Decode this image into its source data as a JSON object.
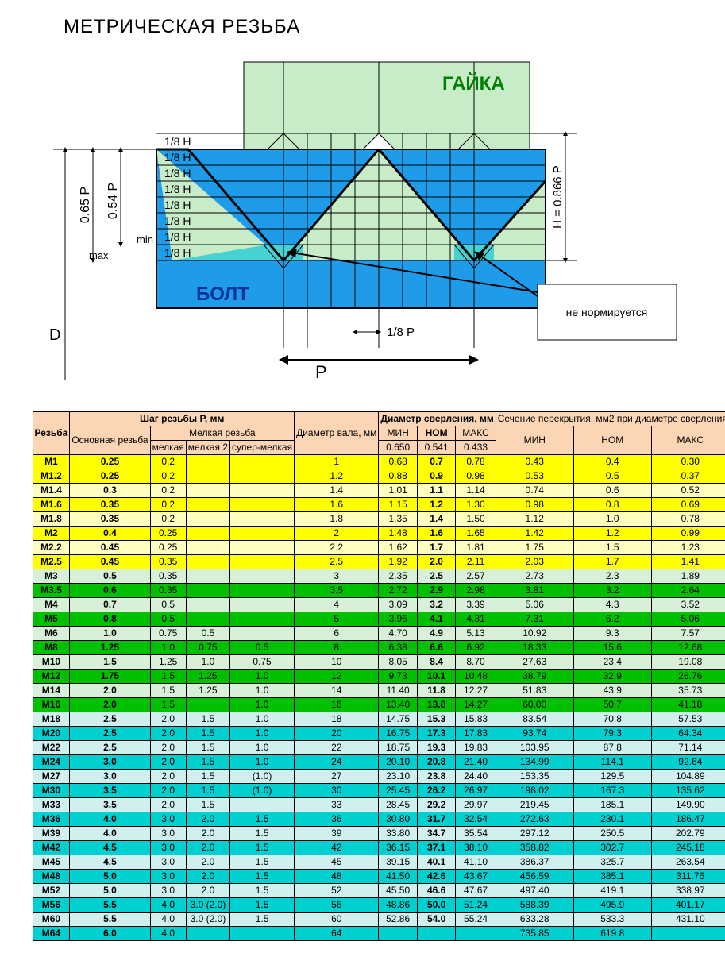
{
  "title": "МЕТРИЧЕСКАЯ РЕЗЬБА",
  "diagram": {
    "nut_label": "ГАЙКА",
    "bolt_label": "БОЛТ",
    "note_label": "не нормируется",
    "d_label": "D",
    "max_label": "max",
    "min_label": "min",
    "p065_label": "0.65 P",
    "p054_label": "0.54 P",
    "h_label": "H = 0.866 P",
    "p_label": "P",
    "p18_label": "1/8 P",
    "h18_label": "1/8 H",
    "colors": {
      "bolt_fill": "#1e9be9",
      "nut_fill": "#c8ecc8",
      "root_fill": "#46d2d2",
      "line": "#000000"
    }
  },
  "table": {
    "headers": {
      "thread": "Резьба",
      "pitch_group": "Шаг резьбы P, мм",
      "main_pitch": "Основная резьба",
      "fine_group": "Мелкая резьба",
      "fine1": "мелкая",
      "fine2": "мелкая 2",
      "fine3": "супер-мелкая",
      "shaft": "Диаметр вала, мм",
      "drill_group": "Диаметр сверления, мм",
      "overlap_group": "Сечение перекрытия, мм2 при диаметре сверления",
      "min": "МИН",
      "nom": "НОМ",
      "max": "МАКС",
      "v1": "0.650",
      "v2": "0.541",
      "v3": "0.433"
    },
    "colors": {
      "y0": "#ffffc0",
      "y1": "#ffff00",
      "g0": "#d8f0d8",
      "g1": "#00c000",
      "c0": "#d0f0f0",
      "c1": "#00d0d0"
    },
    "rows": [
      {
        "hl": 1,
        "c": "y",
        "t": "M1",
        "p": "0.25",
        "f1": "0.2",
        "f2": "",
        "f3": "",
        "sh": "1",
        "dmin": "0.68",
        "dnom": "0.7",
        "dmax": "0.78",
        "smin": "0.43",
        "snom": "0.4",
        "smax": "0.30"
      },
      {
        "hl": 1,
        "c": "y",
        "t": "M1.2",
        "p": "0.25",
        "f1": "0.2",
        "f2": "",
        "f3": "",
        "sh": "1.2",
        "dmin": "0.88",
        "dnom": "0.9",
        "dmax": "0.98",
        "smin": "0.53",
        "snom": "0.5",
        "smax": "0.37"
      },
      {
        "hl": 0,
        "c": "y",
        "t": "M1.4",
        "p": "0.3",
        "f1": "0.2",
        "f2": "",
        "f3": "",
        "sh": "1.4",
        "dmin": "1.01",
        "dnom": "1.1",
        "dmax": "1.14",
        "smin": "0.74",
        "snom": "0.6",
        "smax": "0.52"
      },
      {
        "hl": 1,
        "c": "y",
        "t": "M1.6",
        "p": "0.35",
        "f1": "0.2",
        "f2": "",
        "f3": "",
        "sh": "1.6",
        "dmin": "1.15",
        "dnom": "1.2",
        "dmax": "1.30",
        "smin": "0.98",
        "snom": "0.8",
        "smax": "0.69"
      },
      {
        "hl": 0,
        "c": "y",
        "t": "M1.8",
        "p": "0.35",
        "f1": "0.2",
        "f2": "",
        "f3": "",
        "sh": "1.8",
        "dmin": "1.35",
        "dnom": "1.4",
        "dmax": "1.50",
        "smin": "1.12",
        "snom": "1.0",
        "smax": "0.78"
      },
      {
        "hl": 1,
        "c": "y",
        "t": "M2",
        "p": "0.4",
        "f1": "0.25",
        "f2": "",
        "f3": "",
        "sh": "2",
        "dmin": "1.48",
        "dnom": "1.6",
        "dmax": "1.65",
        "smin": "1.42",
        "snom": "1.2",
        "smax": "0.99"
      },
      {
        "hl": 0,
        "c": "y",
        "t": "M2.2",
        "p": "0.45",
        "f1": "0.25",
        "f2": "",
        "f3": "",
        "sh": "2.2",
        "dmin": "1.62",
        "dnom": "1.7",
        "dmax": "1.81",
        "smin": "1.75",
        "snom": "1.5",
        "smax": "1.23"
      },
      {
        "hl": 1,
        "c": "y",
        "t": "M2.5",
        "p": "0.45",
        "f1": "0.35",
        "f2": "",
        "f3": "",
        "sh": "2.5",
        "dmin": "1.92",
        "dnom": "2.0",
        "dmax": "2.11",
        "smin": "2.03",
        "snom": "1.7",
        "smax": "1.41"
      },
      {
        "hl": 0,
        "c": "g",
        "t": "M3",
        "p": "0.5",
        "f1": "0.35",
        "f2": "",
        "f3": "",
        "sh": "3",
        "dmin": "2.35",
        "dnom": "2.5",
        "dmax": "2.57",
        "smin": "2.73",
        "snom": "2.3",
        "smax": "1.89"
      },
      {
        "hl": 1,
        "c": "g",
        "t": "M3.5",
        "p": "0.6",
        "f1": "0.35",
        "f2": "",
        "f3": "",
        "sh": "3.5",
        "dmin": "2.72",
        "dnom": "2.9",
        "dmax": "2.98",
        "smin": "3.81",
        "snom": "3.2",
        "smax": "2.64"
      },
      {
        "hl": 0,
        "c": "g",
        "t": "M4",
        "p": "0.7",
        "f1": "0.5",
        "f2": "",
        "f3": "",
        "sh": "4",
        "dmin": "3.09",
        "dnom": "3.2",
        "dmax": "3.39",
        "smin": "5.06",
        "snom": "4.3",
        "smax": "3.52"
      },
      {
        "hl": 1,
        "c": "g",
        "t": "M5",
        "p": "0.8",
        "f1": "0.5",
        "f2": "",
        "f3": "",
        "sh": "5",
        "dmin": "3.96",
        "dnom": "4.1",
        "dmax": "4.31",
        "smin": "7.31",
        "snom": "6.2",
        "smax": "5.06"
      },
      {
        "hl": 0,
        "c": "g",
        "t": "M6",
        "p": "1.0",
        "f1": "0.75",
        "f2": "0.5",
        "f3": "",
        "sh": "6",
        "dmin": "4.70",
        "dnom": "4.9",
        "dmax": "5.13",
        "smin": "10.92",
        "snom": "9.3",
        "smax": "7.57"
      },
      {
        "hl": 1,
        "c": "g",
        "t": "M8",
        "p": "1.25",
        "f1": "1.0",
        "f2": "0.75",
        "f3": "0.5",
        "sh": "8",
        "dmin": "6.38",
        "dnom": "6.6",
        "dmax": "6.92",
        "smin": "18.33",
        "snom": "15.6",
        "smax": "12.68"
      },
      {
        "hl": 0,
        "c": "g",
        "t": "M10",
        "p": "1.5",
        "f1": "1.25",
        "f2": "1.0",
        "f3": "0.75",
        "sh": "10",
        "dmin": "8.05",
        "dnom": "8.4",
        "dmax": "8.70",
        "smin": "27.63",
        "snom": "23.4",
        "smax": "19.08"
      },
      {
        "hl": 1,
        "c": "g",
        "t": "M12",
        "p": "1.75",
        "f1": "1.5",
        "f2": "1.25",
        "f3": "1.0",
        "sh": "12",
        "dmin": "9.73",
        "dnom": "10.1",
        "dmax": "10.48",
        "smin": "38.79",
        "snom": "32.9",
        "smax": "26.76"
      },
      {
        "hl": 0,
        "c": "g",
        "t": "M14",
        "p": "2.0",
        "f1": "1.5",
        "f2": "1.25",
        "f3": "1.0",
        "sh": "14",
        "dmin": "11.40",
        "dnom": "11.8",
        "dmax": "12.27",
        "smin": "51.83",
        "snom": "43.9",
        "smax": "35.73"
      },
      {
        "hl": 1,
        "c": "g",
        "t": "M16",
        "p": "2.0",
        "f1": "1.5",
        "f2": "",
        "f3": "1.0",
        "sh": "16",
        "dmin": "13.40",
        "dnom": "13.8",
        "dmax": "14.27",
        "smin": "60.00",
        "snom": "50.7",
        "smax": "41.18"
      },
      {
        "hl": 0,
        "c": "c",
        "t": "M18",
        "p": "2.5",
        "f1": "2.0",
        "f2": "1.5",
        "f3": "1.0",
        "sh": "18",
        "dmin": "14.75",
        "dnom": "15.3",
        "dmax": "15.83",
        "smin": "83.54",
        "snom": "70.8",
        "smax": "57.53"
      },
      {
        "hl": 1,
        "c": "c",
        "t": "M20",
        "p": "2.5",
        "f1": "2.0",
        "f2": "1.5",
        "f3": "1.0",
        "sh": "20",
        "dmin": "16.75",
        "dnom": "17.3",
        "dmax": "17.83",
        "smin": "93.74",
        "snom": "79.3",
        "smax": "64.34"
      },
      {
        "hl": 0,
        "c": "c",
        "t": "M22",
        "p": "2.5",
        "f1": "2.0",
        "f2": "1.5",
        "f3": "1.0",
        "sh": "22",
        "dmin": "18.75",
        "dnom": "19.3",
        "dmax": "19.83",
        "smin": "103.95",
        "snom": "87.8",
        "smax": "71.14"
      },
      {
        "hl": 1,
        "c": "c",
        "t": "M24",
        "p": "3.0",
        "f1": "2.0",
        "f2": "1.5",
        "f3": "1.0",
        "sh": "24",
        "dmin": "20.10",
        "dnom": "20.8",
        "dmax": "21.40",
        "smin": "134.99",
        "snom": "114.1",
        "smax": "92.64"
      },
      {
        "hl": 0,
        "c": "c",
        "t": "M27",
        "p": "3.0",
        "f1": "2.0",
        "f2": "1.5",
        "f3": "(1.0)",
        "sh": "27",
        "dmin": "23.10",
        "dnom": "23.8",
        "dmax": "24.40",
        "smin": "153.35",
        "snom": "129.5",
        "smax": "104.89"
      },
      {
        "hl": 1,
        "c": "c",
        "t": "M30",
        "p": "3.5",
        "f1": "2.0",
        "f2": "1.5",
        "f3": "(1.0)",
        "sh": "30",
        "dmin": "25.45",
        "dnom": "26.2",
        "dmax": "26.97",
        "smin": "198.02",
        "snom": "167.3",
        "smax": "135.62"
      },
      {
        "hl": 0,
        "c": "c",
        "t": "M33",
        "p": "3.5",
        "f1": "2.0",
        "f2": "1.5",
        "f3": "",
        "sh": "33",
        "dmin": "28.45",
        "dnom": "29.2",
        "dmax": "29.97",
        "smin": "219.45",
        "snom": "185.1",
        "smax": "149.90"
      },
      {
        "hl": 1,
        "c": "c",
        "t": "M36",
        "p": "4.0",
        "f1": "3.0",
        "f2": "2.0",
        "f3": "1.5",
        "sh": "36",
        "dmin": "30.80",
        "dnom": "31.7",
        "dmax": "32.54",
        "smin": "272.63",
        "snom": "230.1",
        "smax": "186.47"
      },
      {
        "hl": 0,
        "c": "c",
        "t": "M39",
        "p": "4.0",
        "f1": "3.0",
        "f2": "2.0",
        "f3": "1.5",
        "sh": "39",
        "dmin": "33.80",
        "dnom": "34.7",
        "dmax": "35.54",
        "smin": "297.12",
        "snom": "250.5",
        "smax": "202.79"
      },
      {
        "hl": 1,
        "c": "c",
        "t": "M42",
        "p": "4.5",
        "f1": "3.0",
        "f2": "2.0",
        "f3": "1.5",
        "sh": "42",
        "dmin": "36.15",
        "dnom": "37.1",
        "dmax": "38.10",
        "smin": "358.82",
        "snom": "302.7",
        "smax": "245.18"
      },
      {
        "hl": 0,
        "c": "c",
        "t": "M45",
        "p": "4.5",
        "f1": "3.0",
        "f2": "2.0",
        "f3": "1.5",
        "sh": "45",
        "dmin": "39.15",
        "dnom": "40.1",
        "dmax": "41.10",
        "smin": "386.37",
        "snom": "325.7",
        "smax": "263.54"
      },
      {
        "hl": 1,
        "c": "c",
        "t": "M48",
        "p": "5.0",
        "f1": "3.0",
        "f2": "2.0",
        "f3": "1.5",
        "sh": "48",
        "dmin": "41.50",
        "dnom": "42.6",
        "dmax": "43.67",
        "smin": "456.59",
        "snom": "385.1",
        "smax": "311.76"
      },
      {
        "hl": 0,
        "c": "c",
        "t": "M52",
        "p": "5.0",
        "f1": "3.0",
        "f2": "2.0",
        "f3": "1.5",
        "sh": "52",
        "dmin": "45.50",
        "dnom": "46.6",
        "dmax": "47.67",
        "smin": "497.40",
        "snom": "419.1",
        "smax": "338.97"
      },
      {
        "hl": 1,
        "c": "c",
        "t": "M56",
        "p": "5.5",
        "f1": "4.0",
        "f2": "3.0 (2.0)",
        "f3": "1.5",
        "sh": "56",
        "dmin": "48.86",
        "dnom": "50.0",
        "dmax": "51.24",
        "smin": "588.39",
        "snom": "495.9",
        "smax": "401.17"
      },
      {
        "hl": 0,
        "c": "c",
        "t": "M60",
        "p": "5.5",
        "f1": "4.0",
        "f2": "3.0 (2.0)",
        "f3": "1.5",
        "sh": "60",
        "dmin": "52.86",
        "dnom": "54.0",
        "dmax": "55.24",
        "smin": "633.28",
        "snom": "533.3",
        "smax": "431.10"
      },
      {
        "hl": 1,
        "c": "c",
        "t": "M64",
        "p": "6.0",
        "f1": "4.0",
        "f2": "",
        "f3": "",
        "sh": "64",
        "dmin": "",
        "dnom": "",
        "dmax": "",
        "smin": "735.85",
        "snom": "619.8",
        "smax": ""
      }
    ]
  }
}
